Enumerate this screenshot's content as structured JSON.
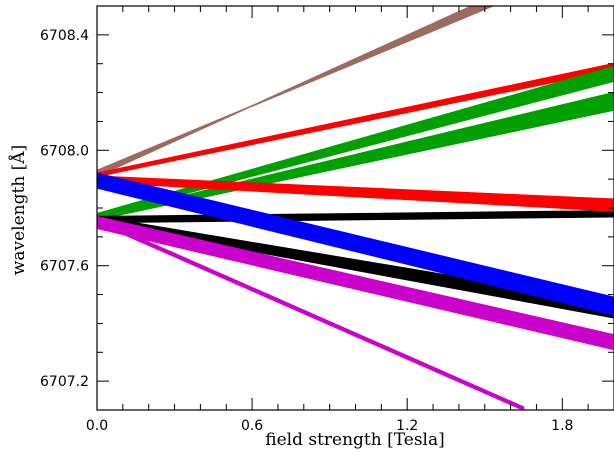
{
  "chart_data": {
    "type": "area",
    "title": "",
    "xlabel": "field strength [Tesla]",
    "ylabel": "wavelength [Å]",
    "xlim": [
      0.0,
      2.0
    ],
    "ylim": [
      6707.1,
      6708.5
    ],
    "x_ticks": [
      0.0,
      0.6,
      1.2,
      1.8
    ],
    "x_tick_labels": [
      "0.0",
      "0.6",
      "1.2",
      "1.8"
    ],
    "y_ticks": [
      6707.2,
      6707.6,
      6708.0,
      6708.4
    ],
    "y_tick_labels": [
      "6707.2",
      "6707.6",
      "6708.0",
      "6708.4"
    ],
    "minor_ticks": true,
    "grid": false,
    "legend": "none",
    "series": [
      {
        "color": "#9c6a5e",
        "x": [
          0.0,
          1.45
        ],
        "lower": [
          6707.91,
          6708.5
        ],
        "upper": [
          6707.93,
          6708.5
        ],
        "end_upper_x": 1.53
      },
      {
        "color": "#ff0000",
        "x": [
          0.0,
          2.0
        ],
        "lower": [
          6707.91,
          6708.28
        ],
        "upper": [
          6707.92,
          6708.3
        ]
      },
      {
        "color": "#00a000",
        "x": [
          0.0,
          2.0
        ],
        "lower": [
          6707.77,
          6708.24
        ],
        "upper": [
          6707.78,
          6708.29
        ]
      },
      {
        "color": "#00a000",
        "x": [
          0.0,
          2.0
        ],
        "lower": [
          6707.76,
          6708.14
        ],
        "upper": [
          6707.77,
          6708.2
        ]
      },
      {
        "color": "#000000",
        "x": [
          0.0,
          2.0
        ],
        "lower": [
          6707.75,
          6707.77
        ],
        "upper": [
          6707.77,
          6707.79
        ]
      },
      {
        "color": "#ff0000",
        "x": [
          0.0,
          2.0
        ],
        "lower": [
          6707.89,
          6707.79
        ],
        "upper": [
          6707.91,
          6707.83
        ]
      },
      {
        "color": "#000000",
        "x": [
          0.0,
          2.0
        ],
        "lower": [
          6707.75,
          6707.42
        ],
        "upper": [
          6707.77,
          6707.47
        ]
      },
      {
        "color": "#0000ff",
        "x": [
          0.0,
          2.0
        ],
        "lower": [
          6707.87,
          6707.43
        ],
        "upper": [
          6707.92,
          6707.49
        ]
      },
      {
        "color": "#cc00cc",
        "x": [
          0.0,
          2.0
        ],
        "lower": [
          6707.73,
          6707.31
        ],
        "upper": [
          6707.77,
          6707.36
        ]
      },
      {
        "color": "#cc00cc",
        "x": [
          0.0,
          1.65
        ],
        "lower": [
          6707.75,
          6707.1
        ],
        "upper": [
          6707.76,
          6707.11
        ]
      }
    ]
  }
}
